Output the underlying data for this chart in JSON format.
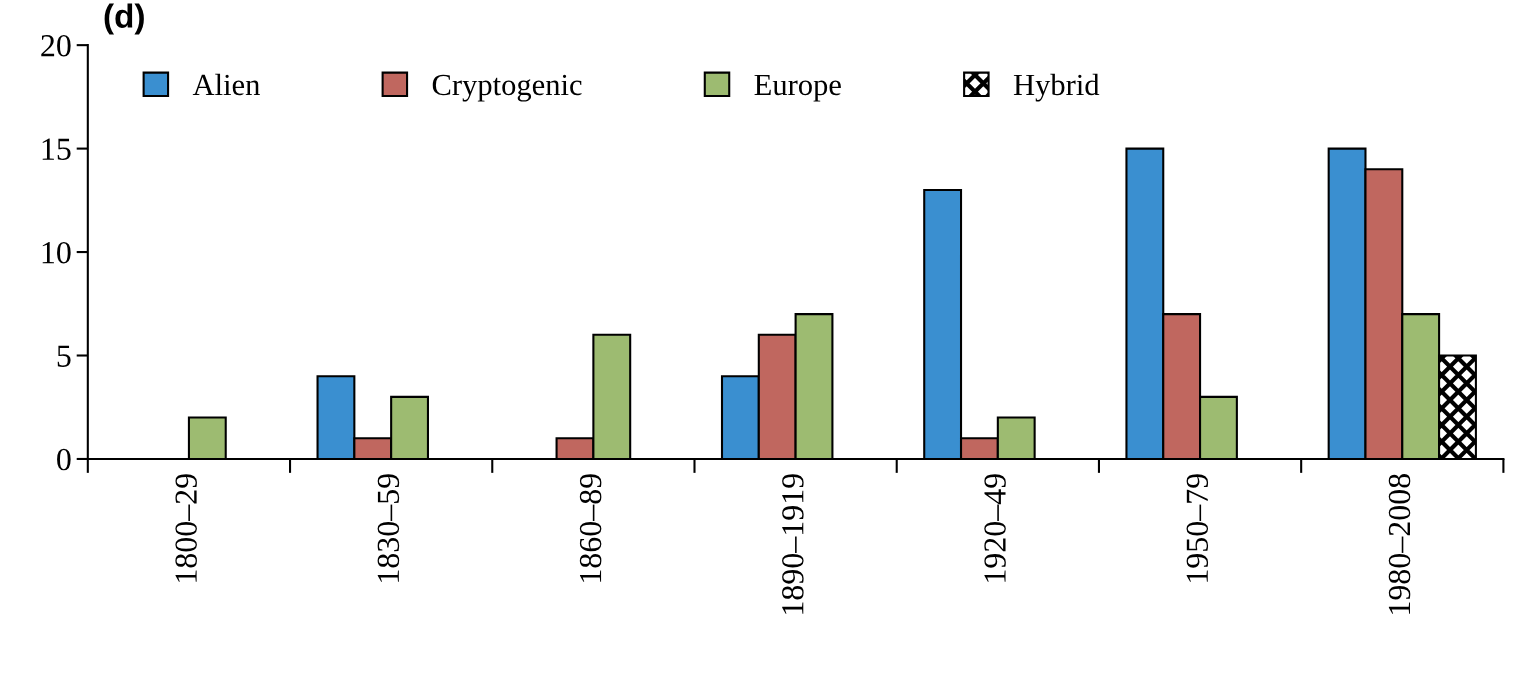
{
  "chart_data": {
    "type": "bar",
    "annotations": [
      "(d)"
    ],
    "categories": [
      "1800–29",
      "1830–59",
      "1860–89",
      "1890–1919",
      "1920–49",
      "1950–79",
      "1980–2008"
    ],
    "series": [
      {
        "name": "Alien",
        "color": "#3a8fd0",
        "values": [
          null,
          4,
          null,
          4,
          13,
          15,
          15
        ]
      },
      {
        "name": "Cryptogenic",
        "color": "#c0675f",
        "values": [
          null,
          1,
          1,
          6,
          1,
          7,
          14
        ]
      },
      {
        "name": "Europe",
        "color": "#9dbb71",
        "values": [
          2,
          3,
          6,
          7,
          2,
          3,
          7
        ]
      },
      {
        "name": "Hybrid",
        "color": "#000000",
        "values": [
          null,
          null,
          null,
          null,
          null,
          null,
          5
        ]
      }
    ],
    "ylim": [
      0,
      20
    ],
    "yticks": [
      0,
      5,
      10,
      15,
      20
    ],
    "grid": false,
    "legend": "top left"
  }
}
